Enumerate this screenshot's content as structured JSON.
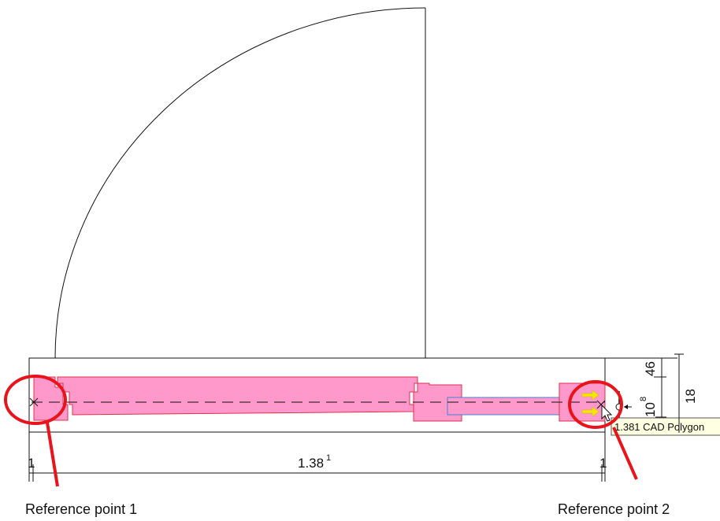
{
  "dimensions": {
    "bottom_left_small": "1",
    "bottom_main": "1.38",
    "bottom_main_superscript": "1",
    "bottom_right_small": "1",
    "vertical_inner_top": "46",
    "vertical_inner_bottom": "10",
    "vertical_inner_bottom_superscript": "8",
    "vertical_outer": "18"
  },
  "tooltip": {
    "text": "1.381 CAD Polygon"
  },
  "annotations": {
    "reference_point_1": "Reference point 1",
    "reference_point_2": "Reference point 2"
  },
  "colors": {
    "frame_fill": "#ff99cc",
    "frame_stroke": "#e0304a",
    "annotation_red": "#e8141c",
    "selection_blue": "#4a7fd4",
    "grip_yellow": "#f5e600",
    "tooltip_bg": "#ffffe1"
  },
  "icons": {
    "snap_cursor": "arrow-cursor-icon",
    "reference_marker": "cross-marker-icon"
  }
}
